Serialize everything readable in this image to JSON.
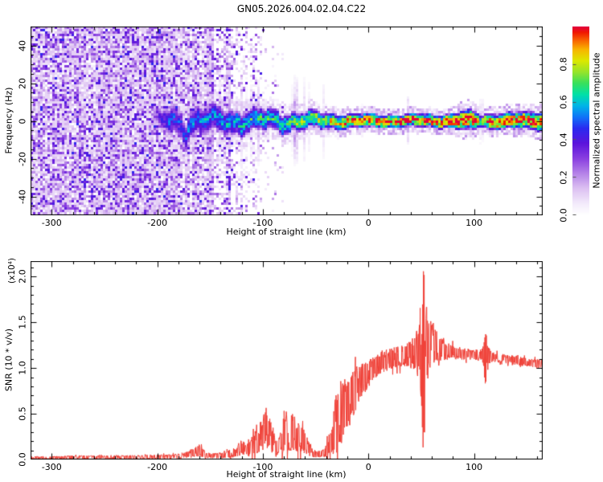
{
  "title": "GN05.2026.004.02.04.C22",
  "colors": {
    "background": "#ffffff",
    "axis": "#000000",
    "snr_line": "#f04138",
    "noise_purple": "#8a3fe0"
  },
  "chart_data": [
    {
      "type": "heatmap",
      "name": "spectrogram",
      "xlabel": "Height of straight line (km)",
      "ylabel": "Frequency (Hz)",
      "xlim": [
        -320,
        165
      ],
      "ylim": [
        -50,
        50
      ],
      "x_ticks": [
        -300,
        -200,
        -100,
        0,
        100
      ],
      "x_minor_step": 20,
      "y_ticks": [
        40,
        20,
        0,
        -20,
        -40
      ],
      "y_minor_step": 5,
      "grid": false,
      "colorbar": {
        "label": "Normalized spectral amplitude",
        "ticks": [
          0.0,
          0.2,
          0.4,
          0.6,
          0.8
        ],
        "range": [
          0,
          1
        ],
        "stops": [
          {
            "p": 0.0,
            "c": "#ffffff"
          },
          {
            "p": 0.06,
            "c": "#f3ebfb"
          },
          {
            "p": 0.14,
            "c": "#ddc1f2"
          },
          {
            "p": 0.22,
            "c": "#b583e8"
          },
          {
            "p": 0.3,
            "c": "#8a3fe0"
          },
          {
            "p": 0.38,
            "c": "#5c14dc"
          },
          {
            "p": 0.46,
            "c": "#2a2af0"
          },
          {
            "p": 0.52,
            "c": "#1173f8"
          },
          {
            "p": 0.58,
            "c": "#00b4e8"
          },
          {
            "p": 0.64,
            "c": "#00e0a8"
          },
          {
            "p": 0.7,
            "c": "#38e05c"
          },
          {
            "p": 0.76,
            "c": "#96e42a"
          },
          {
            "p": 0.82,
            "c": "#dce800"
          },
          {
            "p": 0.88,
            "c": "#f8b400"
          },
          {
            "p": 0.93,
            "c": "#f86000"
          },
          {
            "p": 0.97,
            "c": "#f01800"
          },
          {
            "p": 1.0,
            "c": "#e2003c"
          }
        ]
      },
      "noise": {
        "description": "full-height purple speckle noise at left, fading out toward -100 km",
        "dense_until_km": -162,
        "fade_until_km": -128,
        "sparse_until_km": -96,
        "gone_by_km": -68,
        "light_band_x_km": -175,
        "light_band_halfwidth_km": 4.5,
        "max_amplitude": 0.45,
        "center_streaks": {
          "from_km": -152,
          "to_km": -20,
          "halfwidth_hz": 26
        },
        "extra_streaks": [
          {
            "x": 37,
            "halfwidth_hz": 17,
            "strength": 0.2
          },
          {
            "x": -6,
            "halfwidth_hz": 11,
            "strength": 0.13
          },
          {
            "x": 107,
            "halfwidth_hz": 14,
            "strength": 0.16
          }
        ]
      },
      "signal_band": {
        "description": "narrow signal ridge near 0 Hz, weak/blue near -190 km strengthening to red core toward +165 km, pinch near +107 km",
        "x": [
          -206,
          -198,
          -190,
          -182,
          -174,
          -166,
          -158,
          -150,
          -142,
          -134,
          -126,
          -118,
          -110,
          -102,
          -94,
          -86,
          -78,
          -70,
          -62,
          -54,
          -46,
          -38,
          -30,
          -22,
          -14,
          -6,
          2,
          10,
          18,
          26,
          34,
          42,
          50,
          58,
          66,
          74,
          82,
          88,
          94,
          100,
          104,
          107,
          110,
          114,
          120,
          128,
          136,
          144,
          152,
          158,
          165
        ],
        "amplitude": [
          0.18,
          0.34,
          0.45,
          0.42,
          0.45,
          0.5,
          0.52,
          0.53,
          0.54,
          0.55,
          0.57,
          0.58,
          0.6,
          0.61,
          0.62,
          0.63,
          0.65,
          0.67,
          0.69,
          0.71,
          0.73,
          0.76,
          0.8,
          0.86,
          0.9,
          0.9,
          0.92,
          0.92,
          0.93,
          0.93,
          0.94,
          0.94,
          0.94,
          0.95,
          0.95,
          0.95,
          0.96,
          0.97,
          0.97,
          0.96,
          0.88,
          0.72,
          0.88,
          0.93,
          0.94,
          0.94,
          0.94,
          0.94,
          0.95,
          0.95,
          0.95
        ],
        "halfwidth_hz": [
          5.0,
          7.0,
          9.0,
          9.5,
          9.0,
          9.0,
          9.0,
          8.5,
          8.5,
          8.2,
          8.0,
          7.8,
          7.6,
          7.3,
          7.0,
          6.8,
          6.5,
          6.2,
          6.0,
          5.8,
          5.5,
          5.2,
          5.0,
          4.8,
          4.6,
          4.5,
          4.4,
          4.3,
          4.3,
          4.2,
          4.2,
          4.3,
          4.3,
          4.2,
          4.2,
          4.4,
          5.0,
          6.0,
          6.4,
          6.2,
          4.6,
          3.2,
          4.6,
          5.0,
          5.0,
          5.0,
          5.2,
          5.4,
          5.6,
          5.8,
          6.0
        ],
        "center_dip": {
          "x": -173,
          "depth_hz": 5.5,
          "width_km": 3.5
        }
      }
    },
    {
      "type": "line",
      "name": "snr-profile",
      "xlabel": "Height of straight line (km)",
      "ylabel": "SNR (10 * v/v)",
      "y_scale_note": "(x10⁴)",
      "xlim": [
        -320,
        165
      ],
      "ylim": [
        0,
        2.17
      ],
      "x_ticks": [
        -300,
        -200,
        -100,
        0,
        100
      ],
      "x_minor_step": 20,
      "y_ticks": [
        0.0,
        0.5,
        1.0,
        1.5,
        2.0
      ],
      "y_minor_step": 0.1,
      "grid": false,
      "series": [
        {
          "name": "SNR",
          "x": [
            -320,
            -300,
            -280,
            -260,
            -240,
            -220,
            -200,
            -185,
            -178,
            -170,
            -164,
            -159,
            -154,
            -147,
            -140,
            -133,
            -126,
            -120,
            -115,
            -110,
            -105,
            -100,
            -96,
            -92,
            -88,
            -84,
            -80,
            -76,
            -72,
            -68,
            -64,
            -60,
            -56,
            -52,
            -48,
            -44,
            -40,
            -36,
            -32,
            -28,
            -24,
            -20,
            -16,
            -12,
            -8,
            -4,
            0,
            4,
            8,
            12,
            16,
            20,
            24,
            28,
            32,
            36,
            40,
            44,
            47,
            50,
            52,
            54,
            57,
            60,
            64,
            68,
            72,
            76,
            80,
            85,
            90,
            95,
            100,
            104,
            108,
            111,
            114,
            118,
            124,
            130,
            138,
            146,
            154,
            160,
            165
          ],
          "base": [
            0.02,
            0.02,
            0.025,
            0.025,
            0.028,
            0.028,
            0.03,
            0.032,
            0.04,
            0.055,
            0.09,
            0.095,
            0.045,
            0.04,
            0.045,
            0.055,
            0.08,
            0.13,
            0.1,
            0.15,
            0.22,
            0.3,
            0.35,
            0.26,
            0.13,
            0.16,
            0.28,
            0.34,
            0.3,
            0.27,
            0.24,
            0.18,
            0.11,
            0.07,
            0.055,
            0.06,
            0.09,
            0.18,
            0.35,
            0.48,
            0.54,
            0.6,
            0.68,
            0.76,
            0.84,
            0.89,
            0.94,
            0.99,
            1.03,
            1.06,
            1.08,
            1.1,
            1.115,
            1.12,
            1.13,
            1.14,
            1.15,
            1.17,
            1.19,
            1.21,
            1.2,
            1.24,
            1.26,
            1.25,
            1.23,
            1.21,
            1.195,
            1.185,
            1.175,
            1.165,
            1.155,
            1.15,
            1.145,
            1.14,
            1.135,
            1.13,
            1.125,
            1.12,
            1.11,
            1.1,
            1.085,
            1.07,
            1.06,
            1.052,
            1.048
          ],
          "jitter": [
            0.015,
            0.015,
            0.018,
            0.018,
            0.02,
            0.02,
            0.022,
            0.024,
            0.03,
            0.04,
            0.06,
            0.065,
            0.03,
            0.028,
            0.032,
            0.04,
            0.06,
            0.09,
            0.07,
            0.11,
            0.15,
            0.2,
            0.24,
            0.18,
            0.09,
            0.11,
            0.2,
            0.24,
            0.21,
            0.19,
            0.17,
            0.12,
            0.07,
            0.045,
            0.035,
            0.04,
            0.07,
            0.15,
            0.3,
            0.36,
            0.34,
            0.3,
            0.28,
            0.25,
            0.2,
            0.17,
            0.15,
            0.14,
            0.13,
            0.13,
            0.13,
            0.12,
            0.115,
            0.115,
            0.12,
            0.13,
            0.15,
            0.2,
            0.3,
            0.55,
            0.9,
            0.5,
            0.34,
            0.24,
            0.18,
            0.14,
            0.11,
            0.09,
            0.08,
            0.07,
            0.065,
            0.06,
            0.06,
            0.06,
            0.08,
            0.28,
            0.1,
            0.055,
            0.05,
            0.05,
            0.048,
            0.048,
            0.045,
            0.045,
            0.045
          ]
        }
      ],
      "spikes": [
        {
          "x": 52,
          "top": 2.1,
          "bottom": 0.1,
          "width": 2.5
        },
        {
          "x": 111,
          "top": 1.38,
          "bottom": 0.78,
          "width": 1.8
        }
      ]
    }
  ]
}
